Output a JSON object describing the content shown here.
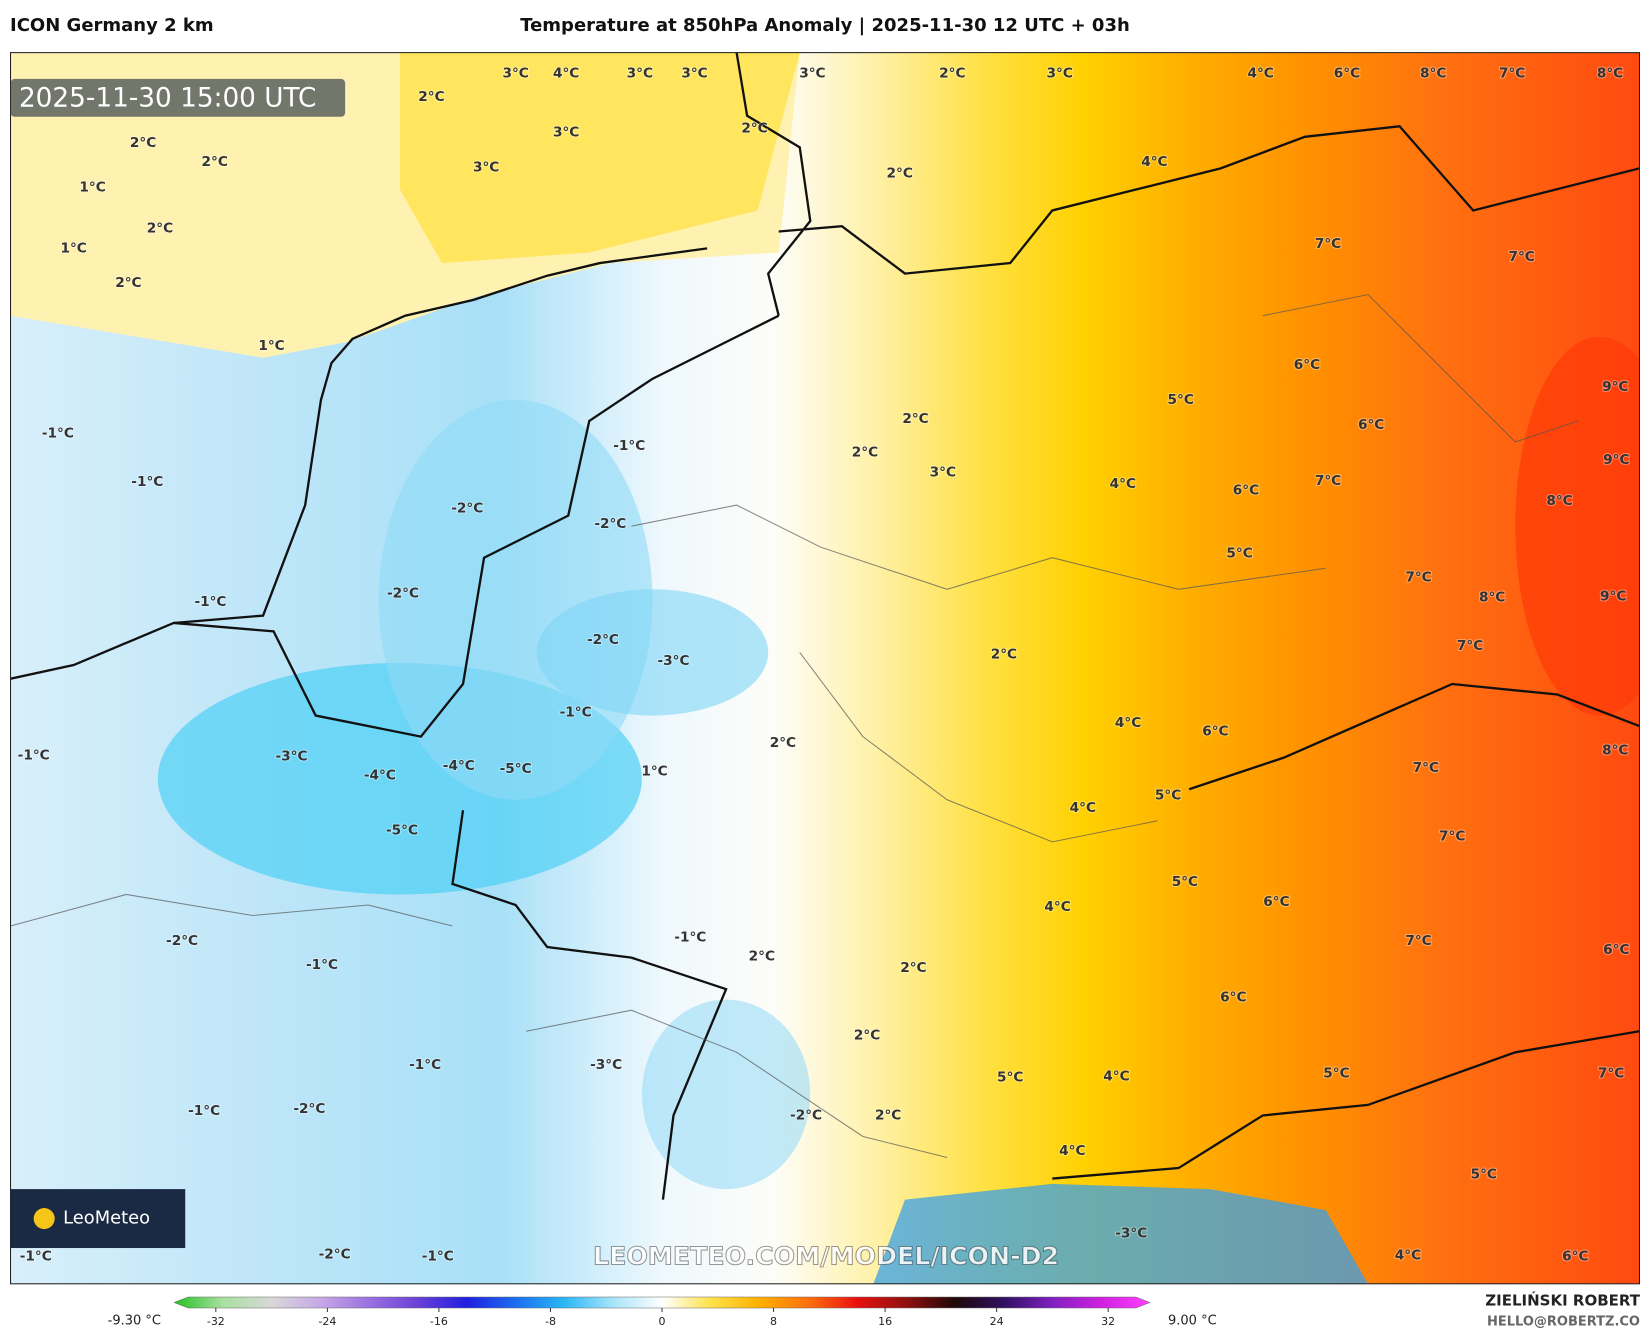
{
  "header": {
    "model": "ICON Germany 2 km",
    "title": "Temperature at 850hPa Anomaly | 2025-11-30 12 UTC + 03h"
  },
  "map": {
    "valid_time": "2025-11-30 15:00 UTC",
    "watermark": "LEOMETEO.COM/MODEL/ICON-D2",
    "logo": "LeoMeteo",
    "labels": [
      "3°C",
      "4°C",
      "3°C",
      "3°C",
      "3°C",
      "2°C",
      "3°C",
      "4°C",
      "6°C",
      "8°C",
      "7°C",
      "8°C",
      "2°C",
      "2°C",
      "2°C",
      "1°C",
      "2°C",
      "1°C",
      "2°C",
      "1°C",
      "3°C",
      "3°C",
      "2°C",
      "2°C",
      "4°C",
      "7°C",
      "7°C",
      "5°C",
      "6°C",
      "6°C",
      "-1°C",
      "-1°C",
      "-1°C",
      "2°C",
      "2°C",
      "3°C",
      "4°C",
      "6°C",
      "7°C",
      "8°C",
      "9°C",
      "9°C",
      "-2°C",
      "-2°C",
      "-1°C",
      "-2°C",
      "-3°C",
      "-2°C",
      "2°C",
      "5°C",
      "7°C",
      "9°C",
      "8°C",
      "7°C",
      "-3°C",
      "-4°C",
      "-4°C",
      "-5°C",
      "-5°C",
      "-1°C",
      "-1°C",
      "1°C",
      "2°C",
      "4°C",
      "6°C",
      "7°C",
      "8°C",
      "4°C",
      "5°C",
      "7°C",
      "5°C",
      "6°C",
      "7°C",
      "6°C",
      "4°C",
      "-1°C",
      "2°C",
      "2°C",
      "-1°C",
      "-2°C",
      "6°C",
      "2°C",
      "5°C",
      "4°C",
      "5°C",
      "7°C",
      "-1°C",
      "-1°C",
      "-2°C",
      "-2°C",
      "2°C",
      "4°C",
      "5°C",
      "6°C",
      "4°C",
      "-1°C",
      "-1°C",
      "-2°C",
      "-3°C",
      "-3°C"
    ]
  },
  "colorbar": {
    "min_label": "-9.30 °C",
    "max_label": "9.00 °C",
    "lim": [
      -35,
      35
    ],
    "ticks": [
      -32,
      -24,
      -16,
      -8,
      0,
      8,
      16,
      24,
      32
    ],
    "colors": [
      "#22c022",
      "#a8e0a0",
      "#d8d8d8",
      "#c8a8e8",
      "#9a70e0",
      "#6a40d8",
      "#2020e0",
      "#1c6ef0",
      "#2ab8f5",
      "#a8e4fa",
      "#ffffff",
      "#ffe24a",
      "#ffb000",
      "#ff7010",
      "#e81010",
      "#901010",
      "#200808",
      "#301060",
      "#8020c0",
      "#d020e0",
      "#ff40ff"
    ]
  },
  "footer": {
    "author": "ZIELIŃSKI ROBERT",
    "contact": "HELLO@ROBERTZ.CO"
  }
}
